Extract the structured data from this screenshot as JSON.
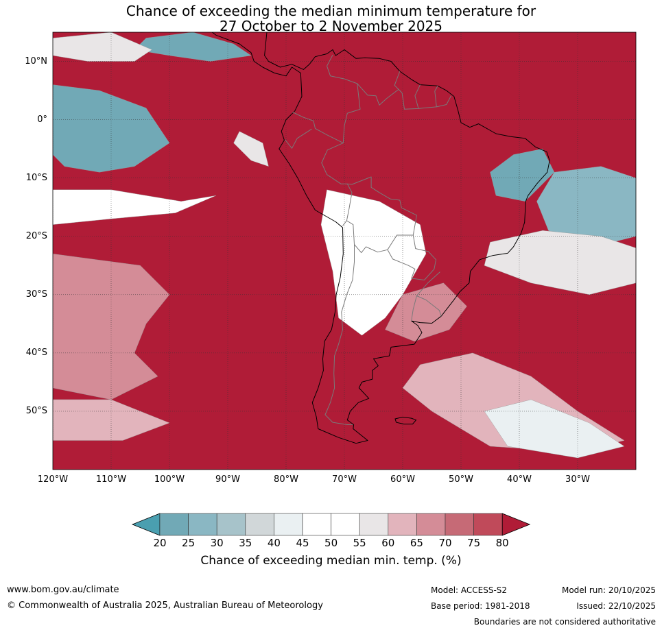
{
  "title": {
    "line1": "Chance of exceeding the median minimum temperature for",
    "line2": "27 October to 2 November 2025"
  },
  "map": {
    "projection": "equirectangular",
    "lon_range": [
      -120,
      -20
    ],
    "lat_range": [
      -60,
      15
    ],
    "lat_ticks": [
      {
        "value": 10,
        "label": "10°N"
      },
      {
        "value": 0,
        "label": "0°"
      },
      {
        "value": -10,
        "label": "10°S"
      },
      {
        "value": -20,
        "label": "20°S"
      },
      {
        "value": -30,
        "label": "30°S"
      },
      {
        "value": -40,
        "label": "40°S"
      },
      {
        "value": -50,
        "label": "50°S"
      }
    ],
    "lon_ticks": [
      {
        "value": -120,
        "label": "120°W"
      },
      {
        "value": -110,
        "label": "110°W"
      },
      {
        "value": -100,
        "label": "100°W"
      },
      {
        "value": -90,
        "label": "90°W"
      },
      {
        "value": -80,
        "label": "80°W"
      },
      {
        "value": -70,
        "label": "70°W"
      },
      {
        "value": -60,
        "label": "60°W"
      },
      {
        "value": -50,
        "label": "50°W"
      },
      {
        "value": -40,
        "label": "40°W"
      },
      {
        "value": -30,
        "label": "30°W"
      }
    ],
    "grid": true,
    "dominant_color": "#b01c37",
    "regions": [
      {
        "name": "",
        "level": 20,
        "lonlat": [
          [
            -120,
            6
          ],
          [
            -112,
            5
          ],
          [
            -104,
            2
          ],
          [
            -100,
            -4
          ],
          [
            -106,
            -8
          ],
          [
            -112,
            -9
          ],
          [
            -118,
            -8
          ],
          [
            -120,
            -6
          ]
        ]
      },
      {
        "name": "",
        "level": 20,
        "lonlat": [
          [
            -104,
            14
          ],
          [
            -96,
            15
          ],
          [
            -89,
            13
          ],
          [
            -86,
            11
          ],
          [
            -93,
            10
          ],
          [
            -100,
            11
          ],
          [
            -106,
            12
          ]
        ]
      },
      {
        "name": "",
        "level": 55,
        "lonlat": [
          [
            -120,
            14
          ],
          [
            -110,
            15
          ],
          [
            -103,
            12
          ],
          [
            -106,
            10
          ],
          [
            -114,
            10
          ],
          [
            -120,
            11
          ]
        ]
      },
      {
        "name": "",
        "level": 50,
        "lonlat": [
          [
            -120,
            -12
          ],
          [
            -110,
            -12
          ],
          [
            -98,
            -14
          ],
          [
            -92,
            -13
          ],
          [
            -99,
            -16
          ],
          [
            -110,
            -17
          ],
          [
            -120,
            -18
          ]
        ]
      },
      {
        "name": "",
        "level": 55,
        "lonlat": [
          [
            -88,
            -2
          ],
          [
            -84,
            -4
          ],
          [
            -83,
            -8
          ],
          [
            -86,
            -7
          ],
          [
            -89,
            -4
          ]
        ]
      },
      {
        "name": "",
        "level": 50,
        "lonlat": [
          [
            -73,
            -12
          ],
          [
            -64,
            -14
          ],
          [
            -57,
            -18
          ],
          [
            -56,
            -23
          ],
          [
            -60,
            -30
          ],
          [
            -63,
            -34
          ],
          [
            -67,
            -37
          ],
          [
            -71,
            -34
          ],
          [
            -72,
            -26
          ],
          [
            -74,
            -18
          ]
        ]
      },
      {
        "name": "",
        "level": 65,
        "lonlat": [
          [
            -60,
            -30
          ],
          [
            -53,
            -28
          ],
          [
            -49,
            -32
          ],
          [
            -52,
            -36
          ],
          [
            -58,
            -38
          ],
          [
            -63,
            -36
          ]
        ]
      },
      {
        "name": "",
        "level": 20,
        "lonlat": [
          [
            -41,
            -6
          ],
          [
            -36,
            -5
          ],
          [
            -34,
            -9
          ],
          [
            -39,
            -14
          ],
          [
            -44,
            -13
          ],
          [
            -45,
            -9
          ]
        ]
      },
      {
        "name": "",
        "level": 25,
        "lonlat": [
          [
            -34,
            -9
          ],
          [
            -26,
            -8
          ],
          [
            -20,
            -10
          ],
          [
            -20,
            -20
          ],
          [
            -28,
            -22
          ],
          [
            -35,
            -19
          ],
          [
            -37,
            -14
          ]
        ]
      },
      {
        "name": "",
        "level": 55,
        "lonlat": [
          [
            -45,
            -21
          ],
          [
            -36,
            -19
          ],
          [
            -26,
            -20
          ],
          [
            -20,
            -22
          ],
          [
            -20,
            -28
          ],
          [
            -28,
            -30
          ],
          [
            -38,
            -28
          ],
          [
            -46,
            -25
          ]
        ]
      },
      {
        "name": "",
        "level": 65,
        "lonlat": [
          [
            -120,
            -23
          ],
          [
            -105,
            -25
          ],
          [
            -100,
            -30
          ],
          [
            -104,
            -35
          ],
          [
            -106,
            -40
          ],
          [
            -102,
            -44
          ],
          [
            -110,
            -48
          ],
          [
            -120,
            -46
          ]
        ]
      },
      {
        "name": "",
        "level": 60,
        "lonlat": [
          [
            -120,
            -48
          ],
          [
            -110,
            -48
          ],
          [
            -100,
            -52
          ],
          [
            -108,
            -55
          ],
          [
            -120,
            -55
          ]
        ]
      },
      {
        "name": "",
        "level": 60,
        "lonlat": [
          [
            -57,
            -42
          ],
          [
            -48,
            -40
          ],
          [
            -38,
            -44
          ],
          [
            -30,
            -50
          ],
          [
            -22,
            -55
          ],
          [
            -30,
            -57
          ],
          [
            -45,
            -56
          ],
          [
            -55,
            -50
          ],
          [
            -60,
            -46
          ]
        ]
      },
      {
        "name": "",
        "level": 40,
        "lonlat": [
          [
            -46,
            -50
          ],
          [
            -38,
            -48
          ],
          [
            -28,
            -52
          ],
          [
            -22,
            -56
          ],
          [
            -30,
            -58
          ],
          [
            -42,
            -56
          ]
        ]
      }
    ],
    "coastline": [
      [
        -105,
        15
      ],
      [
        -97,
        15.5
      ],
      [
        -94,
        16
      ],
      [
        -92,
        14.5
      ],
      [
        -88,
        13
      ],
      [
        -86,
        11.5
      ],
      [
        -85.5,
        10
      ],
      [
        -84,
        9
      ],
      [
        -82,
        8
      ],
      [
        -80,
        7.5
      ],
      [
        -79,
        9
      ],
      [
        -77.5,
        8
      ],
      [
        -77.3,
        4
      ],
      [
        -78.5,
        1.5
      ],
      [
        -80,
        0
      ],
      [
        -80.8,
        -2
      ],
      [
        -80.3,
        -3.5
      ],
      [
        -81.2,
        -5
      ],
      [
        -79.5,
        -7.5
      ],
      [
        -78,
        -10
      ],
      [
        -76.5,
        -13
      ],
      [
        -75,
        -15.5
      ],
      [
        -71.5,
        -17.5
      ],
      [
        -70.3,
        -18.5
      ],
      [
        -70.2,
        -23
      ],
      [
        -70.7,
        -27
      ],
      [
        -71.4,
        -30
      ],
      [
        -71.6,
        -33
      ],
      [
        -72.2,
        -36
      ],
      [
        -73.4,
        -38
      ],
      [
        -73.7,
        -41
      ],
      [
        -73.6,
        -43
      ],
      [
        -74.5,
        -46
      ],
      [
        -75.5,
        -48.5
      ],
      [
        -74.8,
        -51
      ],
      [
        -74.5,
        -53
      ],
      [
        -71,
        -54.5
      ],
      [
        -68,
        -55.5
      ],
      [
        -66,
        -55
      ],
      [
        -68.5,
        -53
      ],
      [
        -68.4,
        -52.3
      ],
      [
        -69.5,
        -51.5
      ],
      [
        -69,
        -50
      ],
      [
        -67.6,
        -48.5
      ],
      [
        -65.8,
        -47.8
      ],
      [
        -67.5,
        -46
      ],
      [
        -67,
        -45
      ],
      [
        -65.2,
        -44.5
      ],
      [
        -65.2,
        -43
      ],
      [
        -64.2,
        -42.2
      ],
      [
        -65,
        -41
      ],
      [
        -62.3,
        -40.5
      ],
      [
        -62,
        -39
      ],
      [
        -58,
        -38.5
      ],
      [
        -56.7,
        -36.5
      ],
      [
        -57.4,
        -35.3
      ],
      [
        -58.5,
        -34.5
      ],
      [
        -57,
        -34.8
      ],
      [
        -55,
        -34.9
      ],
      [
        -53.4,
        -33.7
      ],
      [
        -51.3,
        -31
      ],
      [
        -50.2,
        -29.5
      ],
      [
        -48.6,
        -28
      ],
      [
        -48.4,
        -26
      ],
      [
        -46.8,
        -24
      ],
      [
        -44.6,
        -23.3
      ],
      [
        -42,
        -22.9
      ],
      [
        -41,
        -21.8
      ],
      [
        -39.7,
        -19.5
      ],
      [
        -39.1,
        -17.6
      ],
      [
        -38.9,
        -14
      ],
      [
        -38.5,
        -13
      ],
      [
        -37,
        -11
      ],
      [
        -35.2,
        -9
      ],
      [
        -34.8,
        -7
      ],
      [
        -35.3,
        -5.5
      ],
      [
        -37.2,
        -4.7
      ],
      [
        -39,
        -3.2
      ],
      [
        -41.5,
        -2.9
      ],
      [
        -44,
        -2.4
      ],
      [
        -47,
        -0.7
      ],
      [
        -48.5,
        -1.3
      ],
      [
        -50,
        -0.5
      ],
      [
        -50.5,
        1.5
      ],
      [
        -51.2,
        4
      ],
      [
        -52.5,
        5
      ],
      [
        -54,
        5.8
      ],
      [
        -57,
        6
      ],
      [
        -58.5,
        6.9
      ],
      [
        -60.5,
        8.3
      ],
      [
        -62,
        10
      ],
      [
        -64,
        10.5
      ],
      [
        -66.5,
        10.6
      ],
      [
        -68,
        10.5
      ],
      [
        -70,
        12
      ],
      [
        -71.5,
        11
      ],
      [
        -72,
        12
      ],
      [
        -73,
        11.3
      ],
      [
        -75,
        10.8
      ],
      [
        -76,
        9.5
      ],
      [
        -77,
        8.6
      ],
      [
        -79,
        9.5
      ],
      [
        -81,
        9
      ],
      [
        -83,
        10
      ],
      [
        -83.7,
        11
      ],
      [
        -83.5,
        13
      ],
      [
        -83.3,
        15
      ],
      [
        -84,
        15.8
      ]
    ],
    "falklands": [
      [
        -61.3,
        -51.3
      ],
      [
        -60,
        -51
      ],
      [
        -58.5,
        -51.2
      ],
      [
        -57.7,
        -51.5
      ],
      [
        -58.3,
        -52.2
      ],
      [
        -59.8,
        -52.2
      ],
      [
        -61.1,
        -51.9
      ]
    ],
    "borders": [
      [
        [
          -78.9,
          1.3
        ],
        [
          -77,
          0.4
        ],
        [
          -75.3,
          -0.2
        ],
        [
          -75,
          -1.5
        ],
        [
          -73,
          -2.6
        ],
        [
          -70.2,
          -4
        ],
        [
          -70,
          -1
        ],
        [
          -69.5,
          1.1
        ],
        [
          -67.3,
          1.8
        ],
        [
          -67.8,
          6.2
        ],
        [
          -70,
          7
        ],
        [
          -72.4,
          7.5
        ],
        [
          -73,
          9.2
        ],
        [
          -72,
          11.1
        ]
      ],
      [
        [
          -80.2,
          -3.4
        ],
        [
          -79,
          -4.9
        ],
        [
          -78.1,
          -3.2
        ],
        [
          -75.6,
          -1.6
        ]
      ],
      [
        [
          -70.2,
          -4
        ],
        [
          -72.9,
          -5.2
        ],
        [
          -73.9,
          -7.4
        ],
        [
          -73,
          -9.4
        ],
        [
          -70.6,
          -11
        ],
        [
          -69.5,
          -11
        ],
        [
          -68.7,
          -12.5
        ],
        [
          -69.2,
          -15.3
        ],
        [
          -69.6,
          -17.3
        ],
        [
          -70.3,
          -18.2
        ]
      ],
      [
        [
          -69.6,
          -17.3
        ],
        [
          -68.5,
          -18
        ],
        [
          -68.3,
          -21.4
        ],
        [
          -67.1,
          -22.8
        ],
        [
          -66.3,
          -21.8
        ],
        [
          -64.3,
          -22.7
        ],
        [
          -62.6,
          -22.3
        ],
        [
          -61,
          -19.8
        ],
        [
          -58.2,
          -19.8
        ],
        [
          -57.6,
          -16.4
        ],
        [
          -60.2,
          -15.1
        ],
        [
          -60.5,
          -13.8
        ],
        [
          -62.1,
          -13.6
        ],
        [
          -64,
          -12.5
        ],
        [
          -65.4,
          -11.6
        ],
        [
          -65.4,
          -9.8
        ],
        [
          -68.7,
          -11.1
        ],
        [
          -69.5,
          -11
        ]
      ],
      [
        [
          -68.3,
          -21.4
        ],
        [
          -68.3,
          -24.4
        ],
        [
          -68.6,
          -27.5
        ],
        [
          -69.6,
          -30
        ],
        [
          -70.5,
          -33
        ],
        [
          -70.3,
          -36
        ],
        [
          -71,
          -38.5
        ],
        [
          -71.7,
          -40.5
        ],
        [
          -71.8,
          -43.5
        ],
        [
          -71.7,
          -46
        ],
        [
          -72.4,
          -48.5
        ],
        [
          -73.3,
          -50.6
        ],
        [
          -72,
          -51.9
        ],
        [
          -69.5,
          -52.3
        ],
        [
          -68.6,
          -52.3
        ]
      ],
      [
        [
          -62.6,
          -22.3
        ],
        [
          -61.7,
          -23.9
        ],
        [
          -59,
          -25
        ],
        [
          -57.9,
          -25.6
        ],
        [
          -58.5,
          -27.2
        ],
        [
          -56.3,
          -27.5
        ],
        [
          -54.6,
          -25.6
        ],
        [
          -54.3,
          -24
        ],
        [
          -55.6,
          -22.6
        ],
        [
          -57.8,
          -22.1
        ],
        [
          -58.2,
          -19.8
        ]
      ],
      [
        [
          -53.6,
          -26.1
        ],
        [
          -55.7,
          -28
        ],
        [
          -57.6,
          -30.2
        ],
        [
          -56,
          -30.9
        ],
        [
          -53.7,
          -32.7
        ],
        [
          -53.4,
          -33.7
        ]
      ],
      [
        [
          -57.6,
          -30.2
        ],
        [
          -58.2,
          -32.5
        ],
        [
          -58.4,
          -33.8
        ],
        [
          -58.5,
          -34.5
        ]
      ],
      [
        [
          -60.7,
          5.2
        ],
        [
          -60.1,
          4.6
        ],
        [
          -59.7,
          1.8
        ],
        [
          -57.3,
          1.9
        ],
        [
          -56.5,
          2
        ],
        [
          -54.2,
          2.2
        ],
        [
          -52.5,
          2.6
        ],
        [
          -51.7,
          4.1
        ]
      ],
      [
        [
          -67.8,
          6.2
        ],
        [
          -66,
          4.2
        ],
        [
          -64.6,
          4.1
        ],
        [
          -64,
          2.5
        ],
        [
          -62.8,
          3.6
        ],
        [
          -60.7,
          5.2
        ],
        [
          -61.4,
          5.9
        ],
        [
          -60.5,
          8.3
        ]
      ],
      [
        [
          -57.3,
          1.9
        ],
        [
          -57.9,
          4.1
        ],
        [
          -57,
          6
        ]
      ],
      [
        [
          -54.2,
          2.2
        ],
        [
          -54.5,
          4.9
        ],
        [
          -54,
          5.8
        ]
      ]
    ]
  },
  "colorbar": {
    "levels": [
      20,
      25,
      30,
      35,
      40,
      45,
      50,
      55,
      60,
      65,
      70,
      75,
      80
    ],
    "colors": [
      "#4a9fb0",
      "#71a9b6",
      "#8ab7c3",
      "#a7c3ca",
      "#d1d7d9",
      "#eaf0f2",
      "#ffffff",
      "#ffffff",
      "#e9e6e7",
      "#e2b4bc",
      "#d48c97",
      "#c66a76",
      "#c04a5a",
      "#b01c37"
    ],
    "label": "Chance of exceeding median min. temp. (%)"
  },
  "footer": {
    "website": "www.bom.gov.au/climate",
    "copyright": "© Commonwealth of Australia 2025, Australian Bureau of Meteorology",
    "model": "Model: ACCESS-S2",
    "base_period": "Base period: 1981-2018",
    "model_run": "Model run: 20/10/2025",
    "issued": "Issued: 22/10/2025",
    "disclaimer": "Boundaries are not considered authoritative"
  }
}
